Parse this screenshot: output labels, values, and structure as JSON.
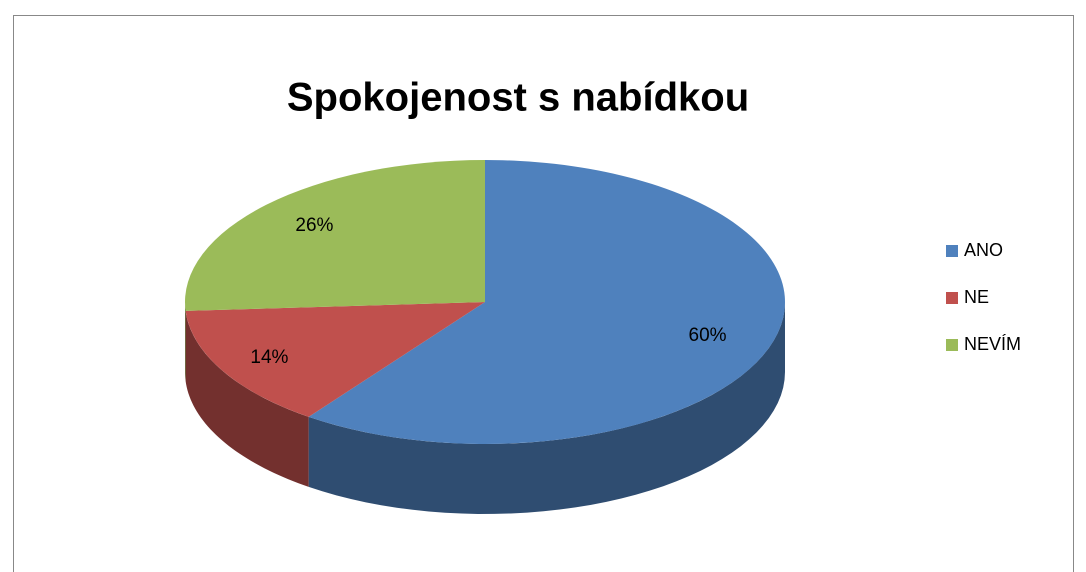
{
  "chart_data": {
    "type": "pie",
    "title": "Spokojenost s nabídkou",
    "categories": [
      "ANO",
      "NE",
      "NEVÍM"
    ],
    "values": [
      60,
      14,
      26
    ],
    "value_labels": [
      "60%",
      "14%",
      "26%"
    ],
    "colors": [
      "#4f81bd",
      "#c0504d",
      "#9bbb59"
    ],
    "legend": "right"
  }
}
